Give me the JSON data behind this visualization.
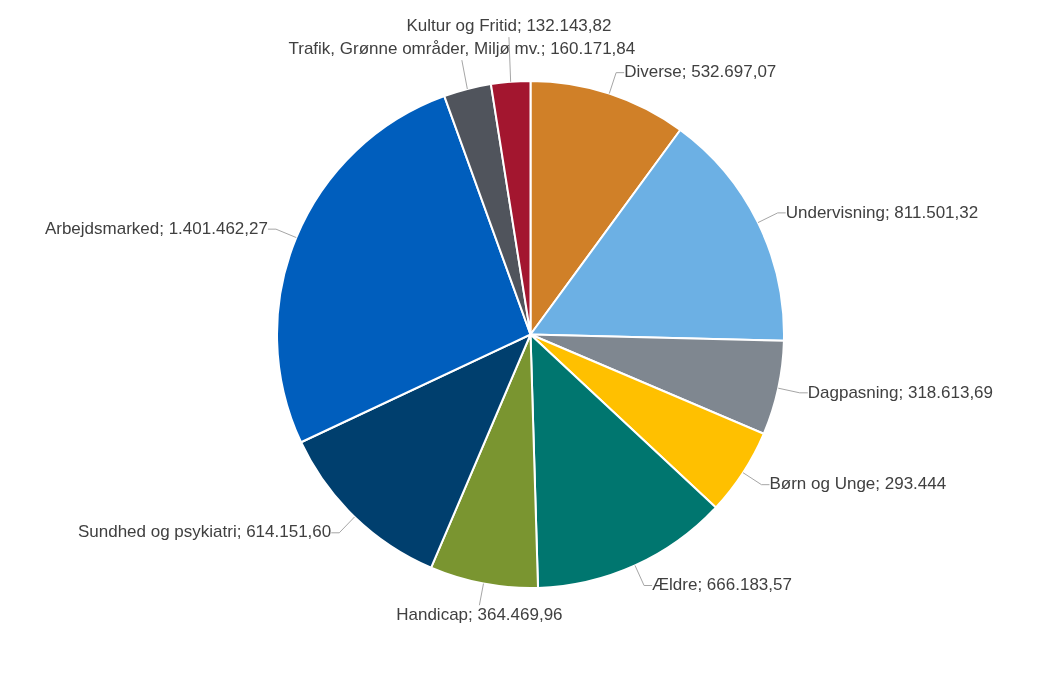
{
  "chart_data": {
    "type": "pie",
    "categories": [
      "Diverse",
      "Undervisning",
      "Dagpasning",
      "Børn og Unge",
      "Ældre",
      "Handicap",
      "Sundhed og psykiatri",
      "Arbejdsmarked",
      "Trafik, Grønne områder, Miljø mv.",
      "Kultur og Fritid"
    ],
    "values": [
      532697.07,
      811501.32,
      318613.69,
      293444,
      666183.57,
      364469.96,
      614151.6,
      1401462.27,
      160171.84,
      132143.82
    ],
    "value_labels": [
      "532.697,07",
      "811.501,32",
      "318.613,69",
      "293.444",
      "666.183,57",
      "364.469,96",
      "614.151,60",
      "1.401.462,27",
      "160.171,84",
      "132.143,82"
    ],
    "colors": [
      "#d08028",
      "#6cb0e4",
      "#7f8790",
      "#ffc000",
      "#00766f",
      "#7a9530",
      "#003f6e",
      "#005ebd",
      "#50545c",
      "#a3162f"
    ]
  }
}
